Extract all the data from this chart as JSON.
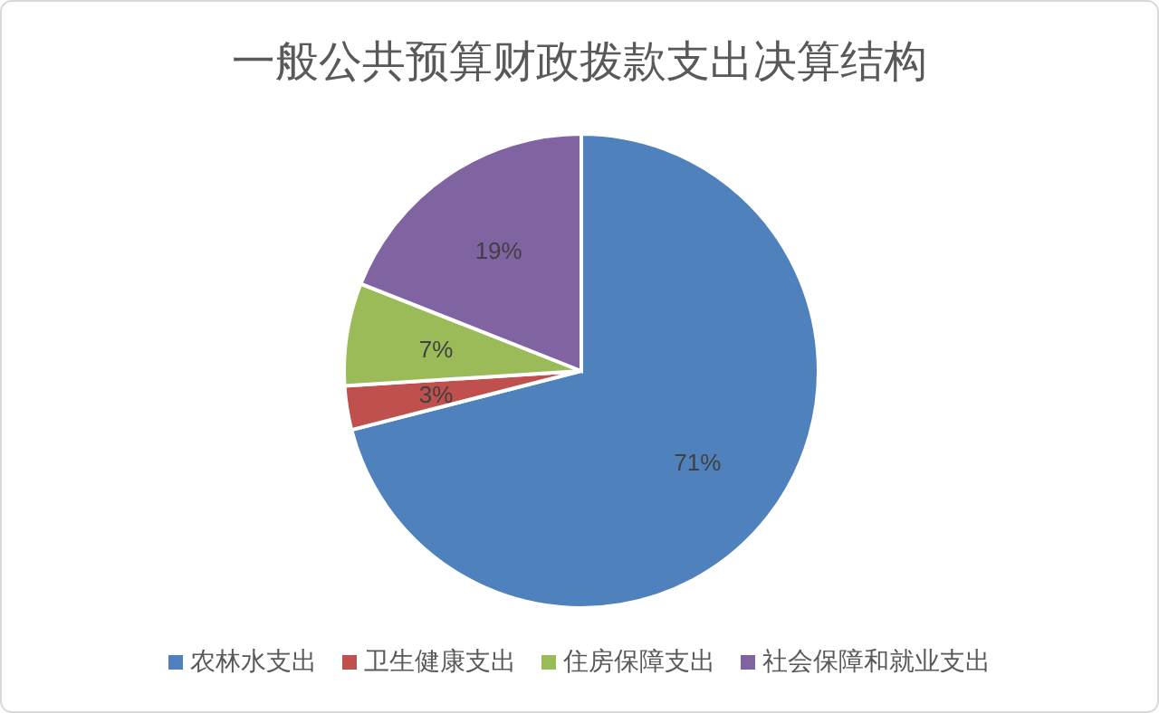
{
  "chart_data": {
    "type": "pie",
    "title": "一般公共预算财政拨款支出决算结构",
    "categories": [
      "农林水支出",
      "卫生健康支出",
      "住房保障支出",
      "社会保障和就业支出"
    ],
    "values": [
      71,
      3,
      7,
      19
    ],
    "colors": [
      "#4f81bd",
      "#c0504d",
      "#9bbb59",
      "#8064a2"
    ],
    "value_labels": [
      "71%",
      "3%",
      "7%",
      "19%"
    ],
    "legend": "bottom"
  }
}
